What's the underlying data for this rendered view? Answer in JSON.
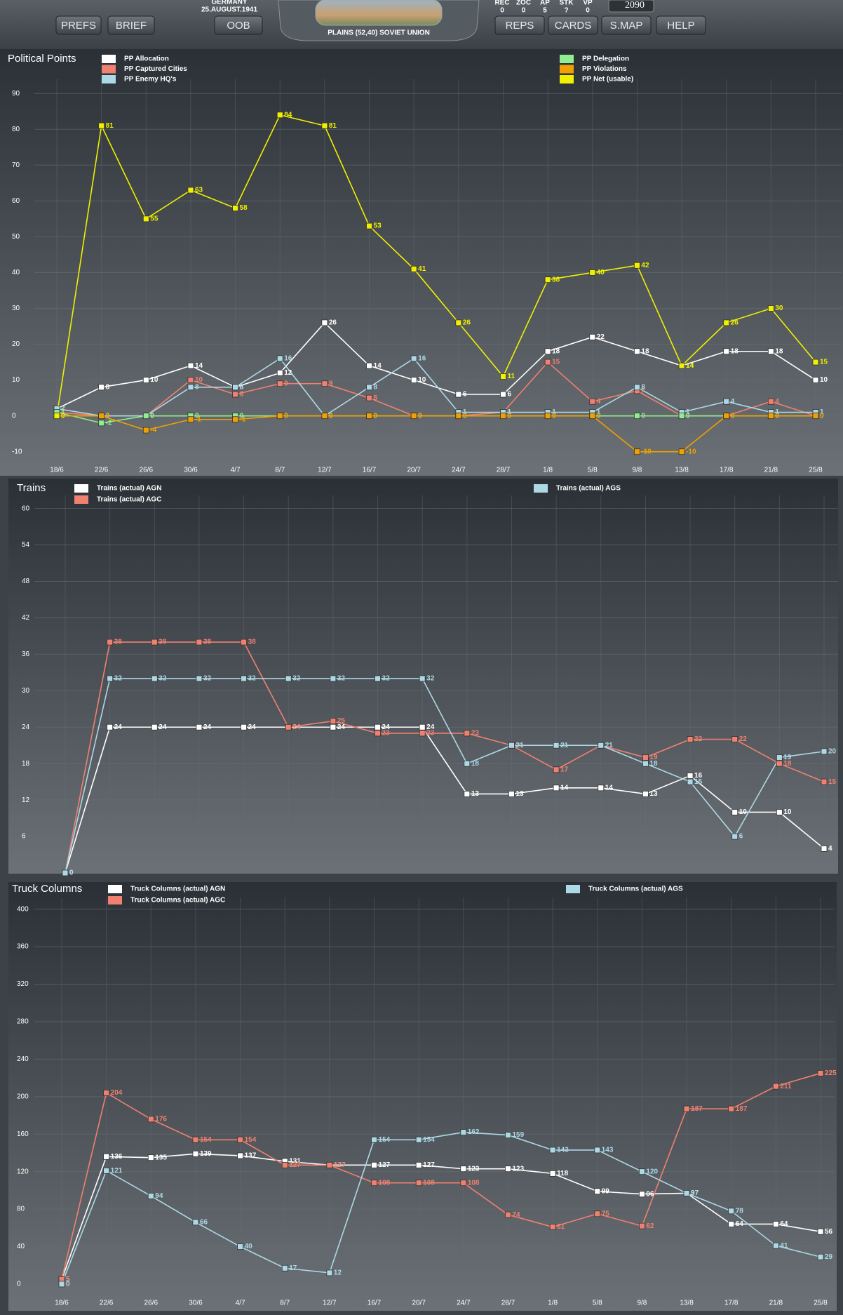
{
  "header": {
    "nation": "GERMANY",
    "date": "25.AUGUST.1941",
    "location": "PLAINS (52,40) SOVIET UNION",
    "buttons_left": [
      "PREFS",
      "BRIEF",
      "OOB"
    ],
    "buttons_right": [
      "REPS",
      "CARDS",
      "S.MAP",
      "HELP"
    ],
    "stats": [
      {
        "label": "REC",
        "value": "0"
      },
      {
        "label": "ZOC",
        "value": "0"
      },
      {
        "label": "AP",
        "value": "5"
      },
      {
        "label": "STK",
        "value": "?"
      },
      {
        "label": "VP",
        "value": "0"
      }
    ],
    "points": "2090"
  },
  "chart_data": [
    {
      "type": "line",
      "title": "Political Points",
      "categories": [
        "18/6",
        "22/6",
        "26/6",
        "30/6",
        "4/7",
        "8/7",
        "12/7",
        "16/7",
        "20/7",
        "24/7",
        "28/7",
        "1/8",
        "5/8",
        "9/8",
        "13/8",
        "17/8",
        "21/8",
        "25/8"
      ],
      "series": [
        {
          "name": "PP Allocation",
          "color": "#ffffff",
          "values": [
            2,
            8,
            10,
            14,
            8,
            12,
            26,
            14,
            10,
            6,
            6,
            18,
            22,
            18,
            14,
            18,
            18,
            10
          ]
        },
        {
          "name": "PP Captured Cities",
          "color": "#f08070",
          "values": [
            1,
            0,
            0,
            10,
            6,
            9,
            9,
            5,
            0,
            0,
            1,
            15,
            4,
            7,
            0,
            0,
            4,
            0
          ]
        },
        {
          "name": "PP Enemy HQ's",
          "color": "#add8e6",
          "values": [
            2,
            0,
            0,
            8,
            8,
            16,
            0,
            8,
            16,
            1,
            1,
            1,
            1,
            8,
            1,
            4,
            1,
            1
          ]
        },
        {
          "name": "PP Delegation",
          "color": "#90ee90",
          "values": [
            1,
            -2,
            0,
            0,
            0,
            0,
            0,
            0,
            0,
            0,
            0,
            0,
            0,
            0,
            0,
            0,
            0,
            0
          ]
        },
        {
          "name": "PP Violations",
          "color": "#f0a000",
          "values": [
            0,
            0,
            -4,
            -1,
            -1,
            0,
            0,
            0,
            0,
            0,
            0,
            0,
            0,
            -10,
            -10,
            0,
            0,
            0
          ]
        },
        {
          "name": "PP Net (usable)",
          "color": "#f0f000",
          "values": [
            0,
            81,
            55,
            63,
            58,
            84,
            81,
            53,
            41,
            26,
            11,
            38,
            40,
            42,
            14,
            26,
            30,
            15
          ]
        }
      ],
      "ylim": [
        -13,
        92
      ],
      "yticks": [
        -10,
        0,
        10,
        20,
        30,
        40,
        50,
        60,
        70,
        80,
        90
      ],
      "grid": true
    },
    {
      "type": "line",
      "title": "Trains",
      "categories": [
        null,
        null,
        null,
        null,
        null,
        null,
        null,
        null,
        null,
        null,
        null,
        null,
        null,
        null,
        null,
        null,
        null,
        null
      ],
      "series": [
        {
          "name": "Trains (actual) AGN",
          "color": "#ffffff",
          "values": [
            0,
            24,
            24,
            24,
            24,
            24,
            24,
            24,
            24,
            13,
            13,
            14,
            14,
            13,
            16,
            10,
            10,
            4
          ]
        },
        {
          "name": "Trains (actual) AGC",
          "color": "#f08070",
          "values": [
            0,
            38,
            38,
            38,
            38,
            24,
            25,
            23,
            23,
            23,
            21,
            17,
            21,
            19,
            22,
            22,
            18,
            15
          ]
        },
        {
          "name": "Trains (actual) AGS",
          "color": "#add8e6",
          "values": [
            0,
            32,
            32,
            32,
            32,
            32,
            32,
            32,
            32,
            18,
            21,
            21,
            21,
            18,
            15,
            6,
            19,
            20
          ]
        }
      ],
      "ylim": [
        0,
        61
      ],
      "yticks": [
        6,
        12,
        18,
        24,
        30,
        36,
        42,
        48,
        54,
        60
      ],
      "grid": true
    },
    {
      "type": "line",
      "title": "Truck Columns",
      "categories": [
        "18/6",
        "22/6",
        "26/6",
        "30/6",
        "4/7",
        "8/7",
        "12/7",
        "16/7",
        "20/7",
        "24/7",
        "28/7",
        "1/8",
        "5/8",
        "9/8",
        "13/8",
        "17/8",
        "21/8",
        "25/8"
      ],
      "series": [
        {
          "name": "Truck Columns (actual) AGN",
          "color": "#ffffff",
          "values": [
            5,
            136,
            135,
            139,
            137,
            131,
            127,
            127,
            127,
            123,
            123,
            118,
            99,
            96,
            97,
            64,
            64,
            56
          ]
        },
        {
          "name": "Truck Columns (actual) AGC",
          "color": "#f08070",
          "values": [
            5,
            204,
            176,
            154,
            154,
            127,
            127,
            108,
            108,
            108,
            74,
            61,
            75,
            62,
            187,
            187,
            211,
            225
          ]
        },
        {
          "name": "Truck Columns (actual) AGS",
          "color": "#add8e6",
          "values": [
            0,
            121,
            94,
            66,
            40,
            17,
            12,
            154,
            154,
            162,
            159,
            143,
            143,
            120,
            97,
            78,
            41,
            29
          ]
        }
      ],
      "ylim": [
        -15,
        405
      ],
      "yticks": [
        0,
        40,
        80,
        120,
        160,
        200,
        240,
        280,
        320,
        360,
        400
      ],
      "grid": true
    }
  ]
}
